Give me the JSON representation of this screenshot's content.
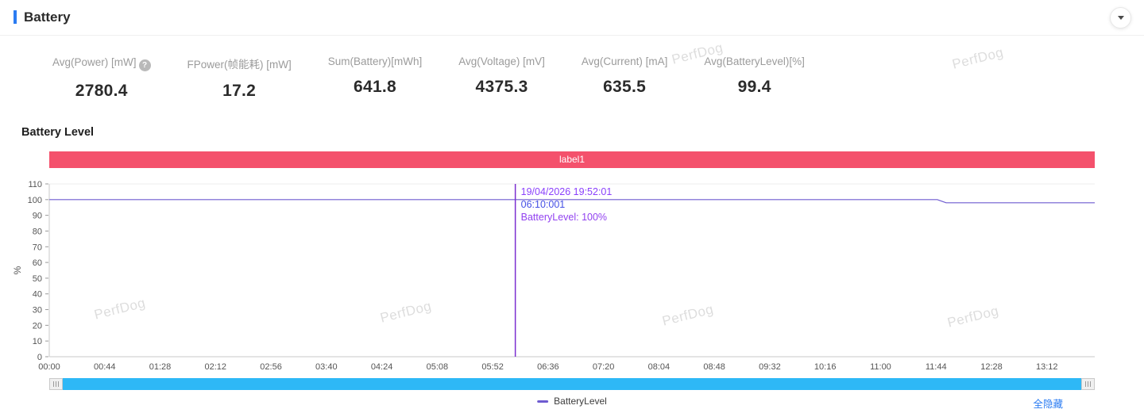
{
  "header": {
    "title": "Battery"
  },
  "icons": {
    "help": "?",
    "collapse": "chevron-down",
    "drag_handle": "grip-lines"
  },
  "colors": {
    "accent": "#2b7cf2",
    "band": "#f4516c",
    "scrollbar_fill": "#2eb8f6",
    "scrollbar_track": "#e6f6fd",
    "link": "#2b7cf2",
    "series": "#6e5bd0",
    "cursor": "#7b2fd1"
  },
  "watermark": "PerfDog",
  "stats": [
    {
      "label": "Avg(Power) [mW]",
      "value": "2780.4",
      "has_help": true
    },
    {
      "label": "FPower(帧能耗) [mW]",
      "value": "17.2"
    },
    {
      "label": "Sum(Battery)[mWh]",
      "value": "641.8"
    },
    {
      "label": "Avg(Voltage) [mV]",
      "value": "4375.3"
    },
    {
      "label": "Avg(Current) [mA]",
      "value": "635.5"
    },
    {
      "label": "Avg(BatteryLevel)[%]",
      "value": "99.4"
    }
  ],
  "section_title": "Battery Level",
  "chart_data": {
    "type": "line",
    "title": "Battery Level",
    "ylabel": "%",
    "ylim": [
      0,
      110
    ],
    "ytick_step": 10,
    "grid": "none",
    "legend_position": "bottom-center",
    "x_ticks": [
      "00:00",
      "00:44",
      "01:28",
      "02:12",
      "02:56",
      "03:40",
      "04:24",
      "05:08",
      "05:52",
      "06:36",
      "07:20",
      "08:04",
      "08:48",
      "09:32",
      "10:16",
      "11:00",
      "11:44",
      "12:28",
      "13:12"
    ],
    "x_tick_interval_s": 44,
    "x_max_s": 830,
    "label_band": {
      "text": "label1",
      "color": "#f4516c"
    },
    "series": [
      {
        "name": "BatteryLevel",
        "color": "#6e5bd0",
        "points": [
          {
            "t": 0,
            "v": 100
          },
          {
            "t": 705,
            "v": 100
          },
          {
            "t": 712,
            "v": 98
          },
          {
            "t": 830,
            "v": 98
          }
        ]
      }
    ],
    "cursor": {
      "t": 370,
      "color": "#7b2fd1",
      "lines": [
        "19/04/2026 19:52:01",
        "06:10:001",
        "BatteryLevel: 100%"
      ],
      "line_colors": [
        "#8a3ffc",
        "#4550e5",
        "#9242f0"
      ]
    }
  },
  "legend": {
    "items": [
      {
        "label": "BatteryLevel",
        "color": "#6e5bd0"
      }
    ],
    "hide_all_label": "全隐藏"
  }
}
